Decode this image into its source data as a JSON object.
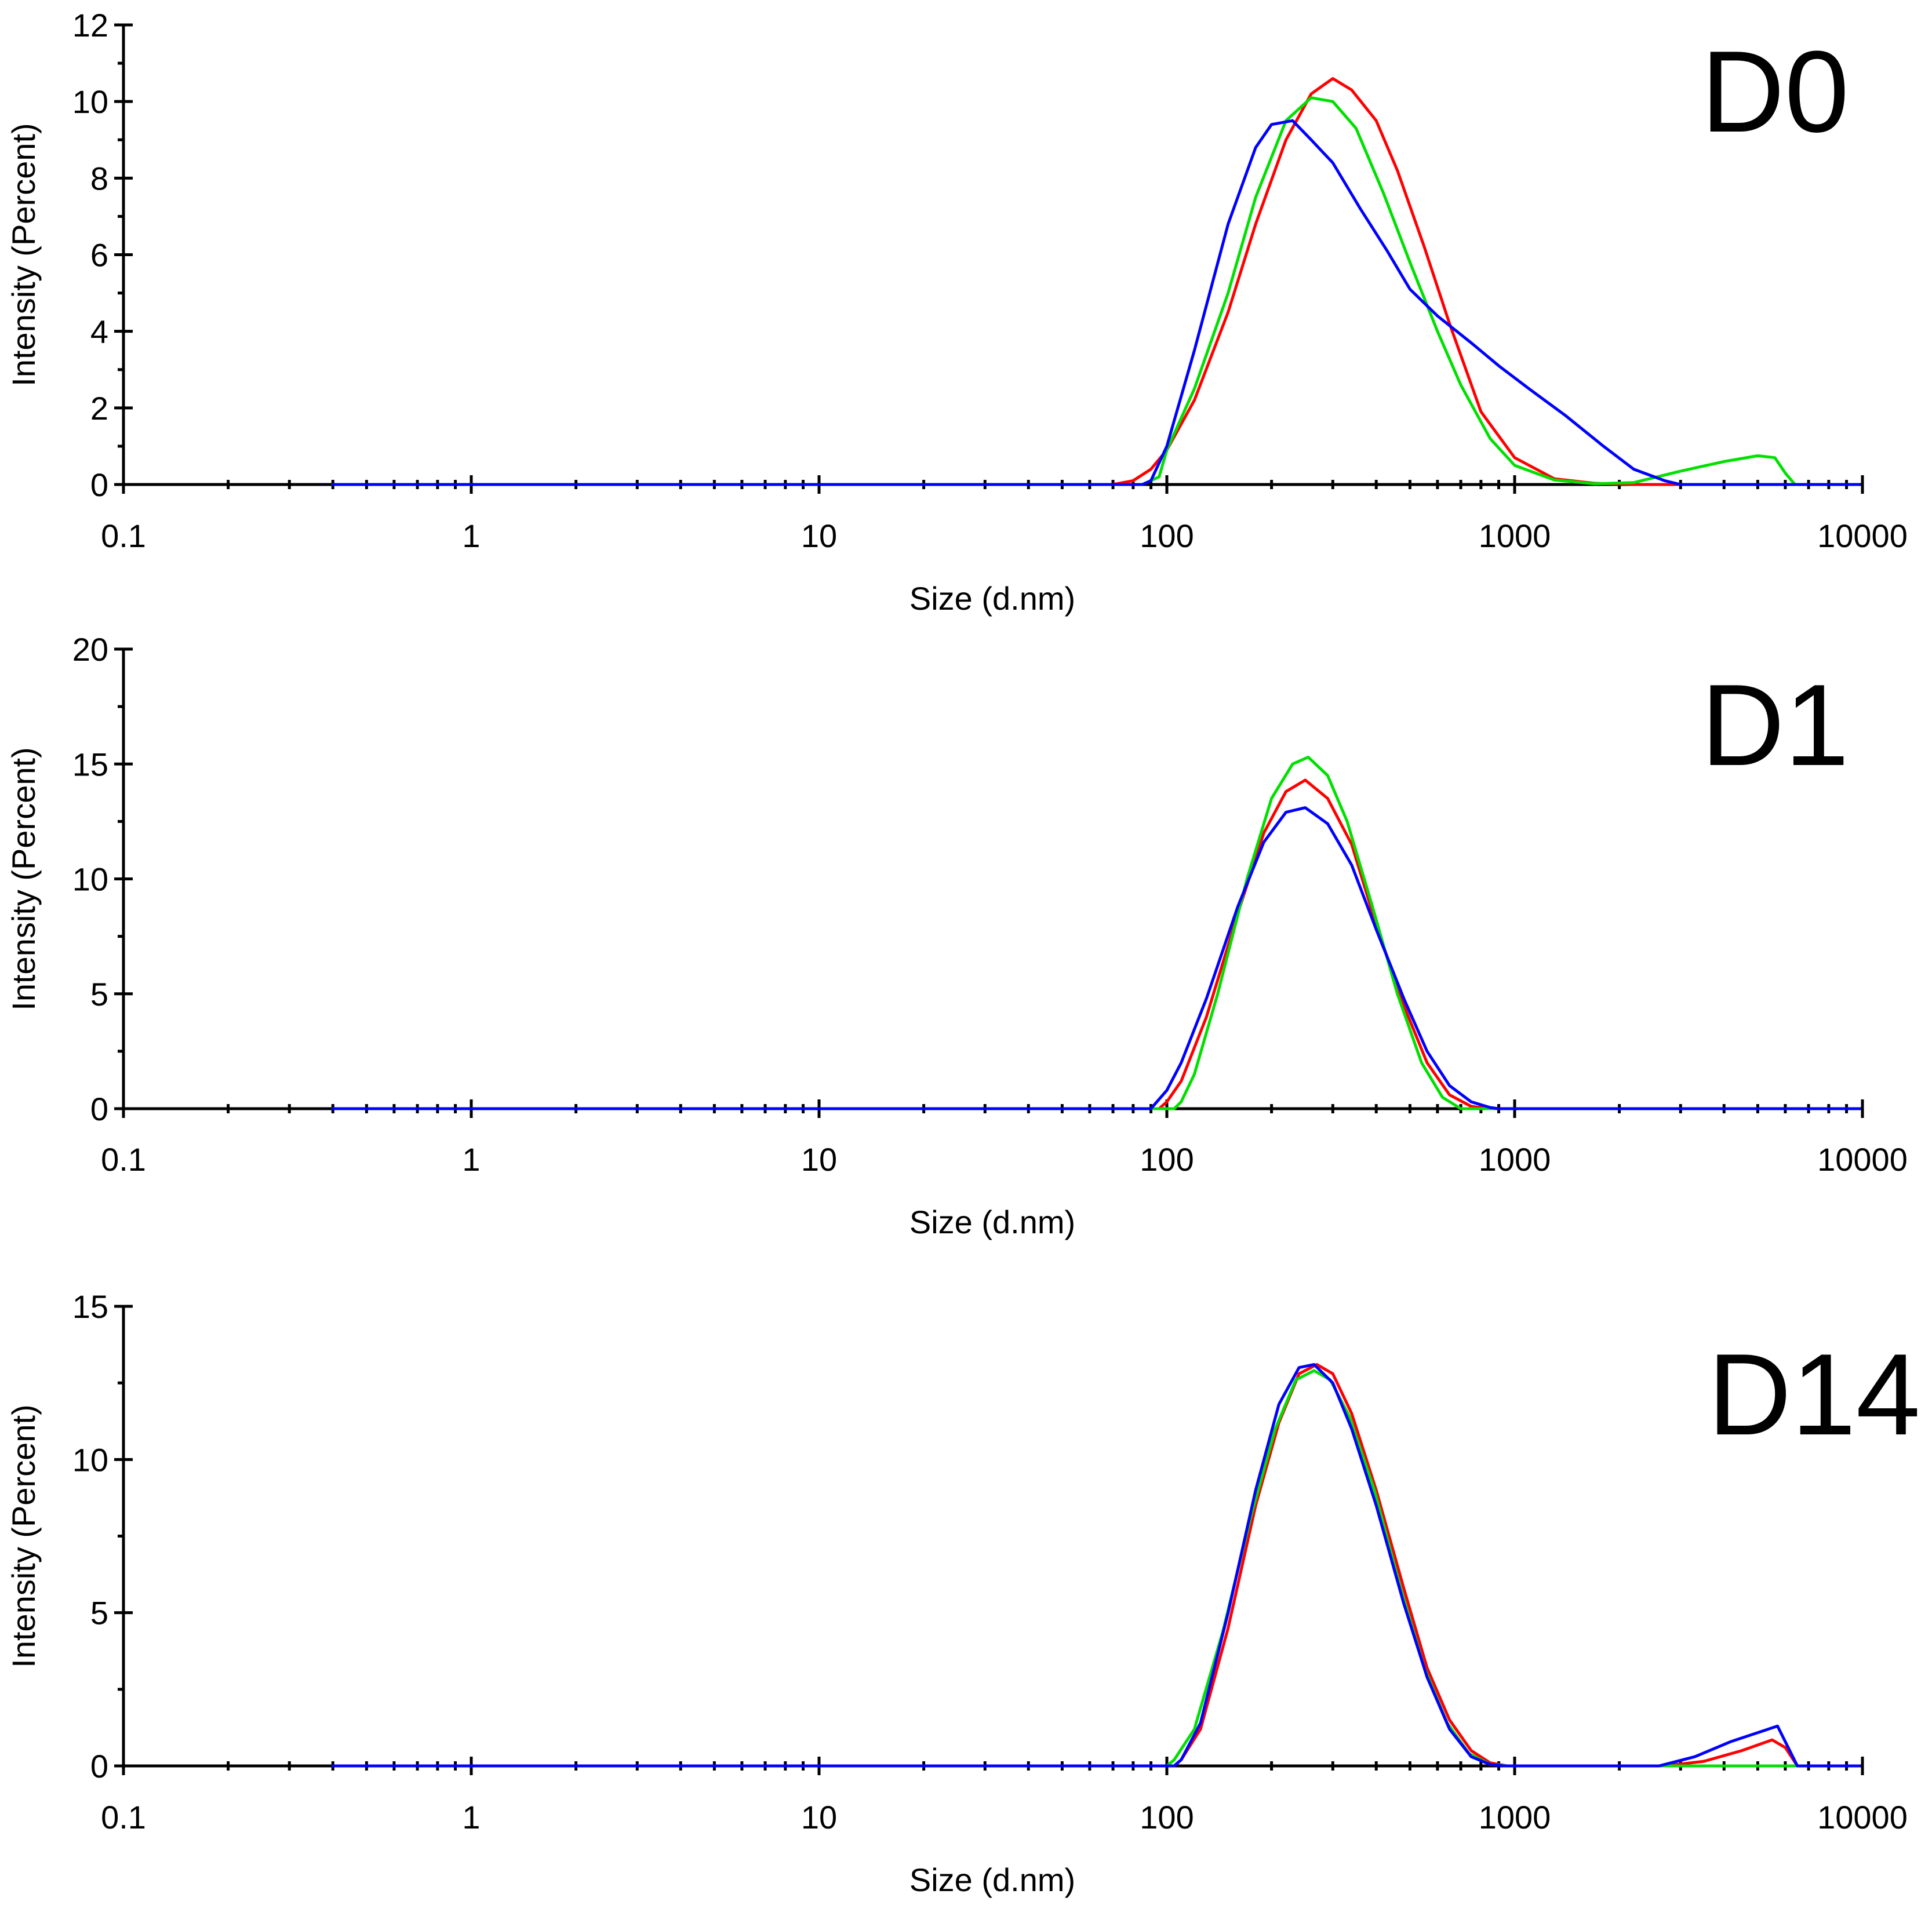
{
  "chart_data": [
    {
      "type": "line",
      "title": "D0",
      "xlabel": "Size (d.nm)",
      "ylabel": "Intensity (Percent)",
      "xscale": "log",
      "xlim": [
        0.1,
        10000
      ],
      "ylim": [
        0,
        12
      ],
      "xticks": [
        "0.1",
        "1",
        "10",
        "100",
        "1000",
        "10000"
      ],
      "yticks": [
        "0",
        "2",
        "4",
        "6",
        "8",
        "10",
        "12"
      ],
      "grid": false,
      "series": [
        {
          "color": "#ff0000",
          "x": [
            0.4,
            70,
            80,
            90,
            100,
            120,
            150,
            180,
            220,
            260,
            300,
            340,
            400,
            460,
            550,
            650,
            800,
            1000,
            1300,
            1700,
            2200,
            3000
          ],
          "y": [
            0,
            0,
            0.1,
            0.4,
            0.9,
            2.2,
            4.5,
            6.8,
            9.0,
            10.2,
            10.6,
            10.3,
            9.5,
            8.2,
            6.2,
            4.2,
            1.9,
            0.7,
            0.15,
            0.03,
            0,
            0
          ]
        },
        {
          "color": "#00e000",
          "x": [
            0.4,
            85,
            95,
            100,
            120,
            150,
            180,
            220,
            260,
            300,
            350,
            420,
            500,
            600,
            700,
            850,
            1000,
            1300,
            1700,
            2200,
            3000,
            4000,
            5000,
            5600,
            6000,
            6400,
            9800
          ],
          "y": [
            0,
            0,
            0.2,
            0.9,
            2.5,
            5.0,
            7.5,
            9.5,
            10.1,
            10.0,
            9.3,
            7.6,
            5.8,
            4.0,
            2.6,
            1.2,
            0.5,
            0.12,
            0.02,
            0.05,
            0.35,
            0.6,
            0.75,
            0.7,
            0.3,
            0,
            0
          ]
        },
        {
          "color": "#0000ff",
          "x": [
            0.4,
            85,
            90,
            100,
            120,
            150,
            180,
            200,
            230,
            260,
            300,
            360,
            430,
            500,
            600,
            750,
            900,
            1100,
            1400,
            1800,
            2200,
            2700,
            3000,
            9800
          ],
          "y": [
            0,
            0,
            0.1,
            1.0,
            3.5,
            6.8,
            8.8,
            9.4,
            9.5,
            9.0,
            8.4,
            7.2,
            6.1,
            5.1,
            4.4,
            3.7,
            3.1,
            2.5,
            1.8,
            1.0,
            0.4,
            0.1,
            0,
            0
          ]
        }
      ]
    },
    {
      "type": "line",
      "title": "D1",
      "xlabel": "Size (d.nm)",
      "ylabel": "Intensity (Percent)",
      "xscale": "log",
      "xlim": [
        0.1,
        10000
      ],
      "ylim": [
        0,
        20
      ],
      "xticks": [
        "0.1",
        "1",
        "10",
        "100",
        "1000",
        "10000"
      ],
      "yticks": [
        "0",
        "5",
        "10",
        "15",
        "20"
      ],
      "grid": false,
      "series": [
        {
          "color": "#ff0000",
          "x": [
            0.4,
            95,
            100,
            110,
            130,
            160,
            190,
            220,
            250,
            290,
            340,
            400,
            480,
            560,
            650,
            750,
            850,
            9800
          ],
          "y": [
            0,
            0,
            0.3,
            1.2,
            4.0,
            8.5,
            12.0,
            13.8,
            14.3,
            13.5,
            11.5,
            8.0,
            4.5,
            2.0,
            0.6,
            0.1,
            0,
            0
          ]
        },
        {
          "color": "#00e000",
          "x": [
            0.4,
            105,
            110,
            120,
            140,
            170,
            200,
            230,
            255,
            290,
            330,
            390,
            460,
            540,
            620,
            700,
            9800
          ],
          "y": [
            0,
            0,
            0.3,
            1.5,
            5.0,
            10.0,
            13.5,
            15.0,
            15.3,
            14.5,
            12.5,
            8.8,
            5.0,
            2.0,
            0.5,
            0,
            0
          ]
        },
        {
          "color": "#0000ff",
          "x": [
            0.4,
            90,
            100,
            110,
            130,
            160,
            190,
            220,
            250,
            290,
            340,
            400,
            480,
            560,
            650,
            750,
            850,
            900,
            9800
          ],
          "y": [
            0,
            0,
            0.8,
            2.0,
            4.8,
            8.8,
            11.6,
            12.9,
            13.1,
            12.4,
            10.6,
            7.8,
            4.8,
            2.5,
            1.0,
            0.3,
            0.05,
            0,
            0
          ]
        }
      ]
    },
    {
      "type": "line",
      "title": "D14",
      "xlabel": "Size (d.nm)",
      "ylabel": "Intensity (Percent)",
      "xscale": "log",
      "xlim": [
        0.1,
        10000
      ],
      "ylim": [
        0,
        15
      ],
      "xticks": [
        "0.1",
        "1",
        "10",
        "100",
        "1000",
        "10000"
      ],
      "yticks": [
        "0",
        "5",
        "10",
        "15"
      ],
      "grid": false,
      "series": [
        {
          "color": "#ff0000",
          "x": [
            0.4,
            105,
            110,
            125,
            150,
            180,
            210,
            240,
            270,
            300,
            340,
            400,
            480,
            560,
            650,
            750,
            850,
            950,
            2700,
            3500,
            4500,
            5500,
            6000,
            6500,
            9800
          ],
          "y": [
            0,
            0,
            0.2,
            1.2,
            4.5,
            8.5,
            11.2,
            12.8,
            13.1,
            12.8,
            11.5,
            9.0,
            5.8,
            3.2,
            1.5,
            0.5,
            0.1,
            0,
            0,
            0.15,
            0.5,
            0.85,
            0.6,
            0,
            0
          ]
        },
        {
          "color": "#00e000",
          "x": [
            0.4,
            100,
            105,
            120,
            145,
            175,
            205,
            235,
            265,
            295,
            335,
            395,
            470,
            550,
            640,
            740,
            850,
            950,
            9800
          ],
          "y": [
            0,
            0,
            0.2,
            1.2,
            4.4,
            8.2,
            11.0,
            12.6,
            12.9,
            12.6,
            11.4,
            9.0,
            5.8,
            3.2,
            1.4,
            0.4,
            0.05,
            0,
            0
          ]
        },
        {
          "color": "#0000ff",
          "x": [
            0.4,
            105,
            110,
            125,
            150,
            180,
            210,
            240,
            265,
            300,
            340,
            400,
            480,
            560,
            650,
            750,
            850,
            930,
            2600,
            3300,
            4200,
            5200,
            5700,
            6500,
            9800
          ],
          "y": [
            0,
            0,
            0.2,
            1.4,
            5.0,
            9.0,
            11.8,
            13.0,
            13.1,
            12.5,
            11.0,
            8.5,
            5.3,
            2.9,
            1.2,
            0.3,
            0.05,
            0,
            0,
            0.3,
            0.8,
            1.15,
            1.3,
            0,
            0
          ]
        }
      ]
    }
  ]
}
